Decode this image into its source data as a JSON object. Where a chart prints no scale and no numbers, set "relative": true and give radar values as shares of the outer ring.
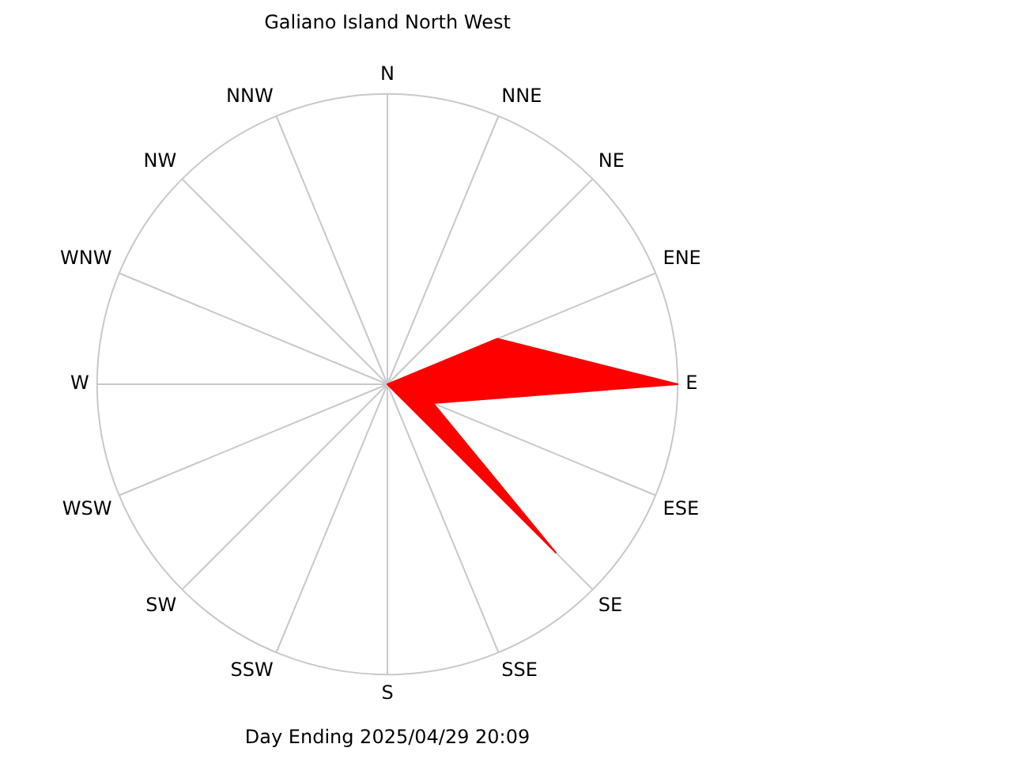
{
  "chart_data": {
    "type": "radar",
    "title": "Galiano Island North West",
    "annotations": [
      "Day Ending 2025/04/29 20:09"
    ],
    "relative": true,
    "legend": false,
    "grid": true,
    "categories": [
      "N",
      "NNE",
      "NE",
      "ENE",
      "E",
      "ESE",
      "SE",
      "SSE",
      "S",
      "SSW",
      "SW",
      "WSW",
      "W",
      "WNW",
      "NW",
      "NNW"
    ],
    "series": [
      {
        "color": "#ff0000",
        "values": [
          0,
          0,
          0,
          0.41,
          1.0,
          0.17,
          0.82,
          0,
          0,
          0,
          0,
          0,
          0,
          0,
          0,
          0
        ]
      }
    ]
  }
}
